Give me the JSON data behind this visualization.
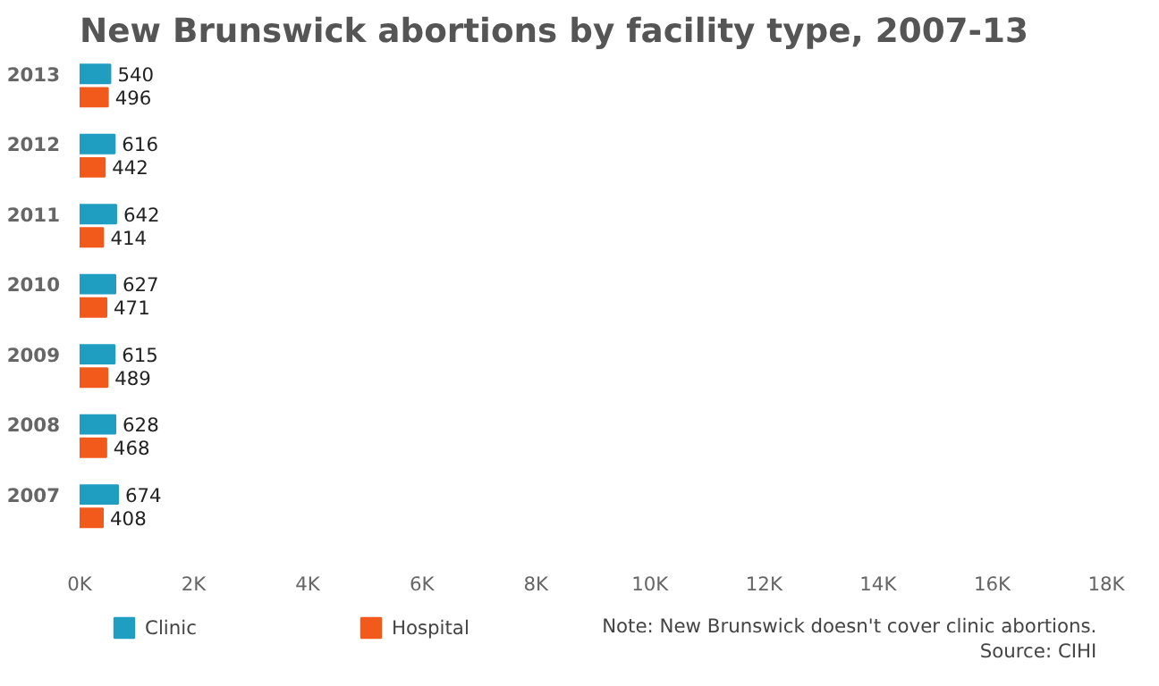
{
  "chart_data": {
    "type": "bar",
    "orientation": "horizontal",
    "title": "New Brunswick abortions by facility type, 2007-13",
    "categories": [
      "2013",
      "2012",
      "2011",
      "2010",
      "2009",
      "2008",
      "2007"
    ],
    "series": [
      {
        "name": "Clinic",
        "color": "#1f9ec2",
        "values": [
          540,
          616,
          642,
          627,
          615,
          628,
          674
        ]
      },
      {
        "name": "Hospital",
        "color": "#f25a1c",
        "values": [
          496,
          442,
          414,
          471,
          489,
          468,
          408
        ]
      }
    ],
    "xlim": [
      0,
      18000
    ],
    "xticks": [
      {
        "value": 0,
        "label": "0K"
      },
      {
        "value": 2000,
        "label": "2K"
      },
      {
        "value": 4000,
        "label": "4K"
      },
      {
        "value": 6000,
        "label": "6K"
      },
      {
        "value": 8000,
        "label": "8K"
      },
      {
        "value": 10000,
        "label": "10K"
      },
      {
        "value": 12000,
        "label": "12K"
      },
      {
        "value": 14000,
        "label": "14K"
      },
      {
        "value": 16000,
        "label": "16K"
      },
      {
        "value": 18000,
        "label": "18K"
      }
    ],
    "data_labels": true,
    "legend": "bottom",
    "grid": false,
    "annotations": [
      "Note: New Brunswick doesn't cover clinic abortions.",
      "Source: CIHI"
    ]
  }
}
